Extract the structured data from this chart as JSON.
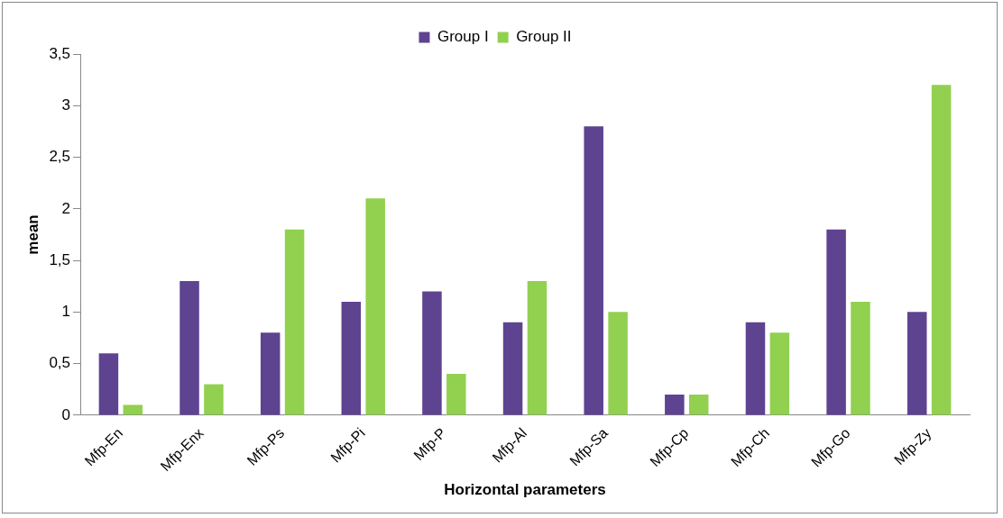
{
  "chart_data": {
    "type": "bar",
    "xlabel": "Horizontal parameters",
    "ylabel": "mean",
    "categories": [
      "Mfp-En",
      "Mfp-Enx",
      "Mfp-Ps",
      "Mfp-Pi",
      "Mfp-P",
      "Mfp-Al",
      "Mfp-Sa",
      "Mfp-Cp",
      "Mfp-Ch",
      "Mfp-Go",
      "Mfp-Zy"
    ],
    "series": [
      {
        "name": "Group I",
        "color": "#5e4391",
        "values": [
          0.6,
          1.3,
          0.8,
          1.1,
          1.2,
          0.9,
          2.8,
          0.2,
          0.9,
          1.8,
          1.0
        ]
      },
      {
        "name": "Group II",
        "color": "#92d050",
        "values": [
          0.1,
          0.3,
          1.8,
          2.1,
          0.4,
          1.3,
          1.0,
          0.2,
          0.8,
          1.1,
          3.2
        ]
      }
    ],
    "ylim": [
      0,
      3.5
    ],
    "yticks": [
      0,
      {
        "value": 0.5,
        "label": "0,5"
      },
      1,
      {
        "value": 1.5,
        "label": "1,5"
      },
      2,
      {
        "value": 2.5,
        "label": "2,5"
      },
      3,
      {
        "value": 3.5,
        "label": "3,5"
      }
    ],
    "grid": false,
    "legend": "top"
  }
}
